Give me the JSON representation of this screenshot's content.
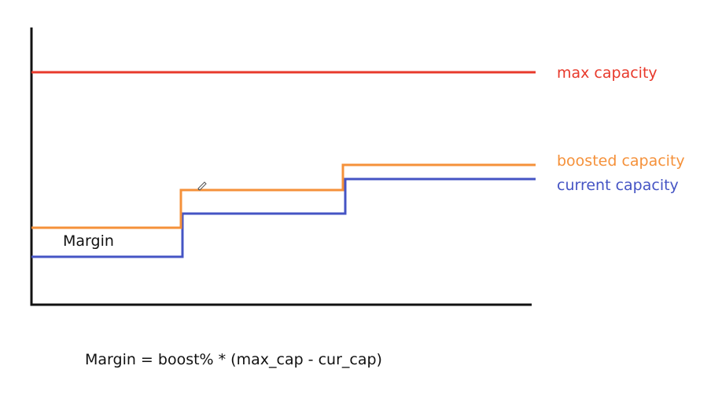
{
  "diagram": {
    "labels": {
      "max_capacity": "max capacity",
      "boosted_capacity": "boosted capacity",
      "current_capacity": "current capacity",
      "margin": "Margin"
    },
    "formula": "Margin = boost% * (max_cap - cur_cap)",
    "colors": {
      "max_capacity": "#e8392b",
      "boosted_capacity": "#f5913a",
      "current_capacity": "#4554c4",
      "axes": "#111111",
      "margin_text": "#111111",
      "cursor": "#555555"
    },
    "icons": {
      "cursor": "pen-cursor-icon"
    }
  }
}
